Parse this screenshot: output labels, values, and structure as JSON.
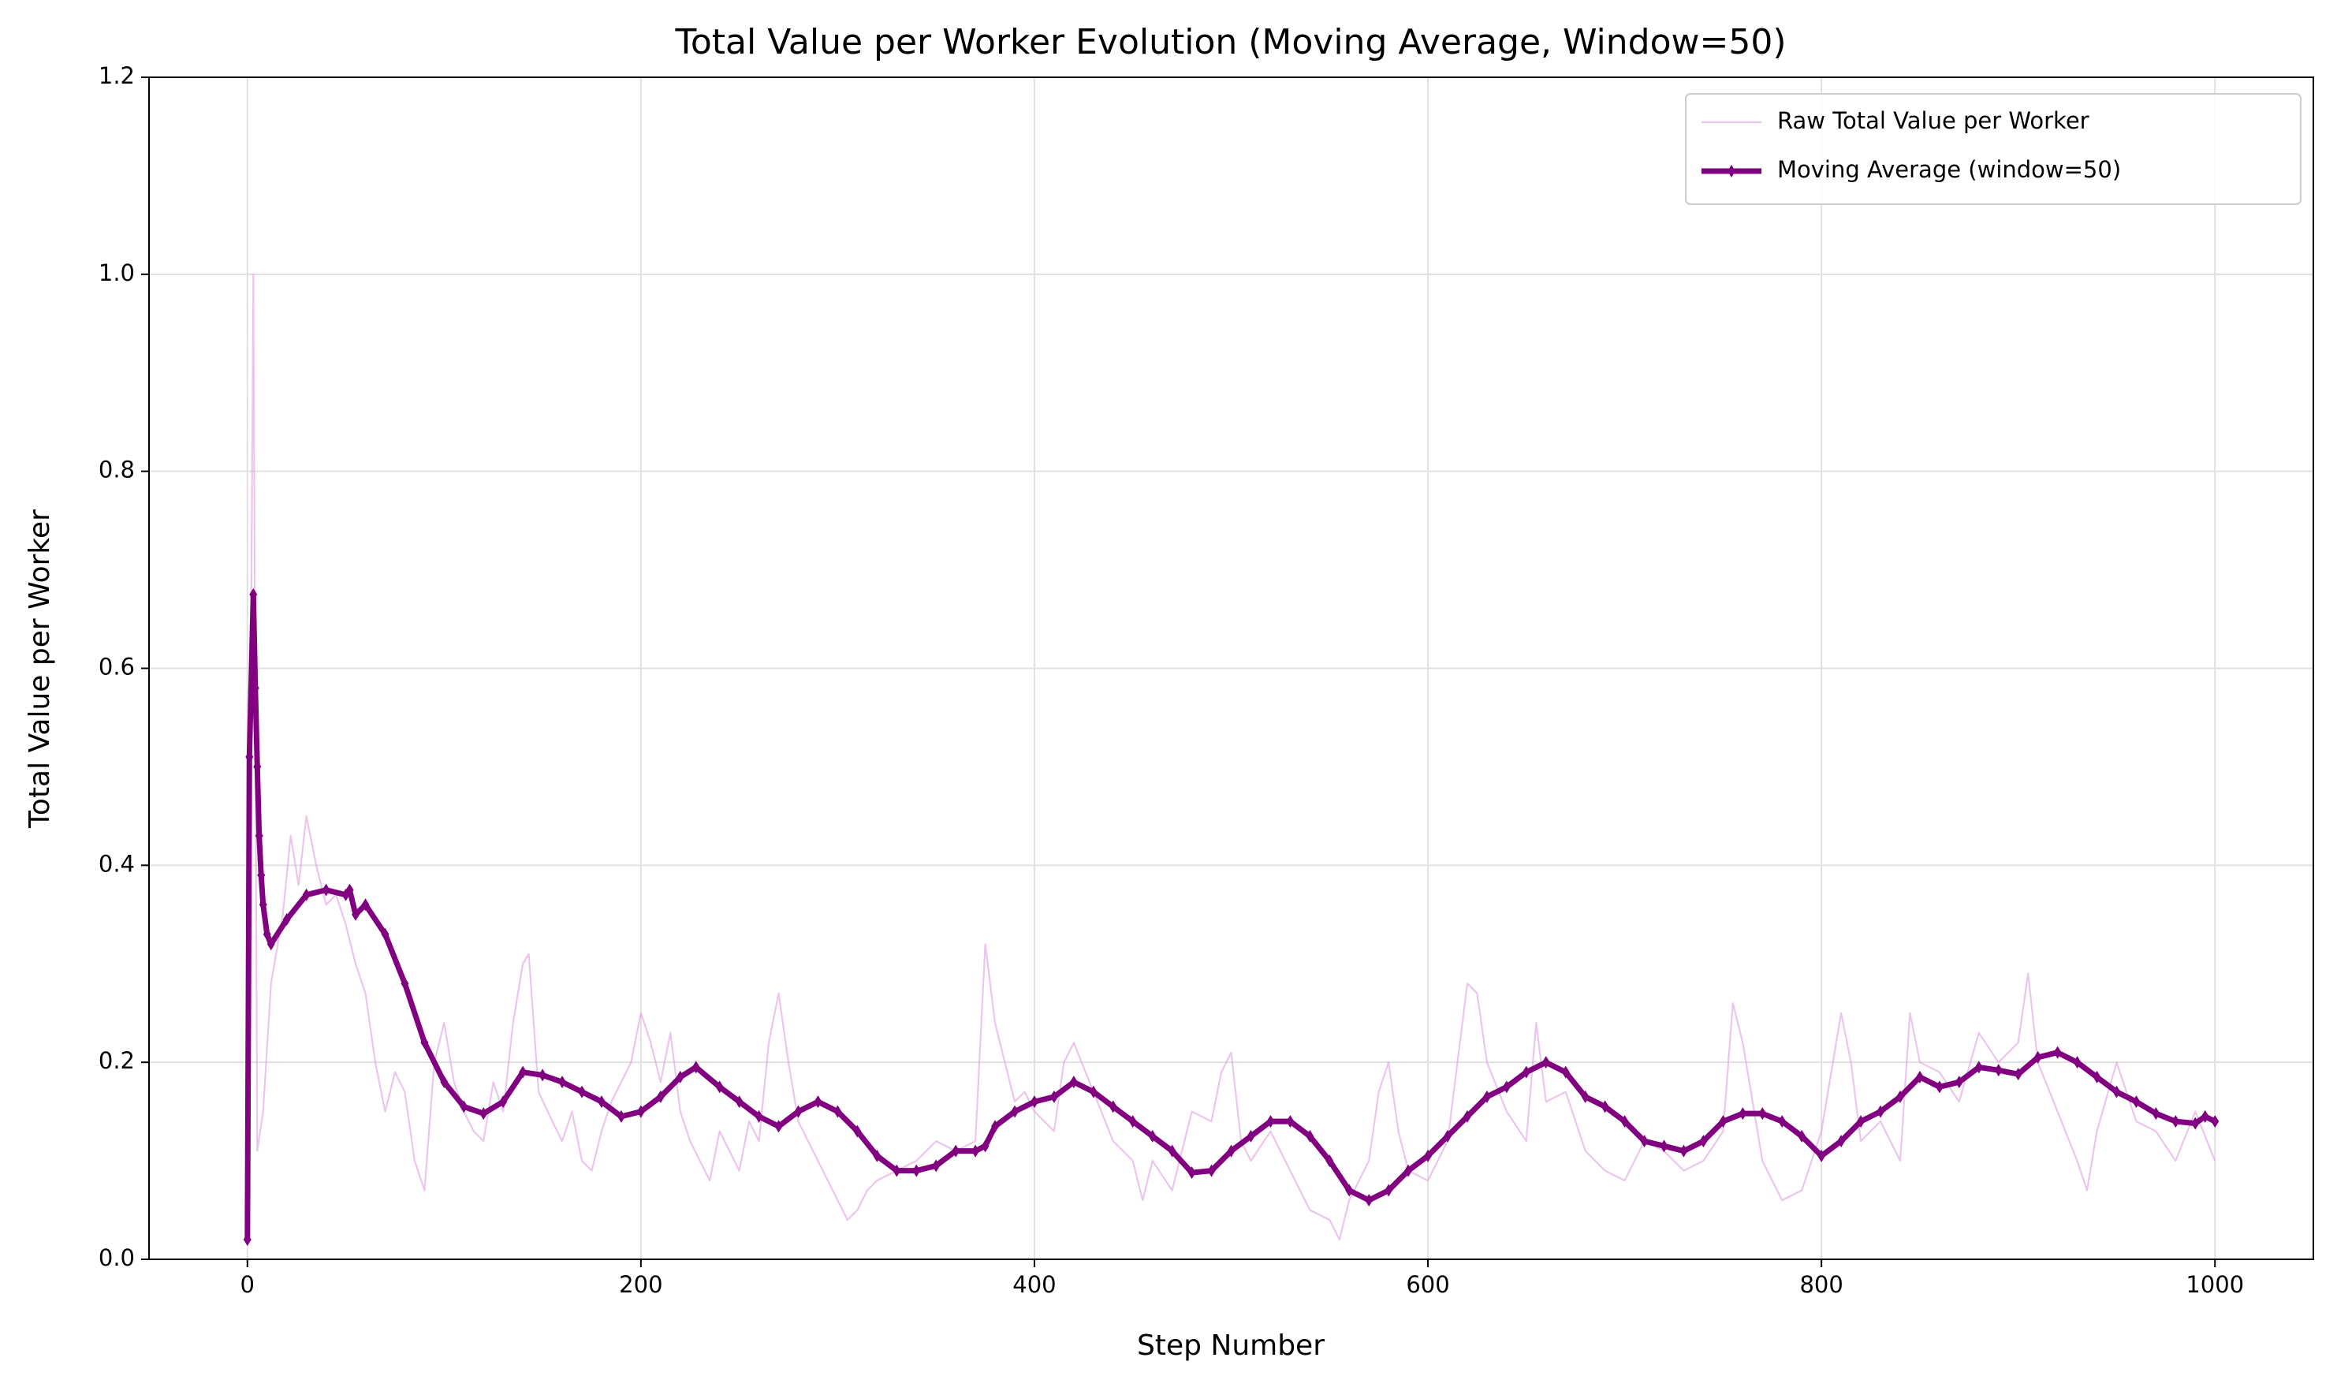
{
  "chart_data": {
    "type": "line",
    "title": "Total Value per Worker Evolution (Moving Average, Window=50)",
    "x_label": "Step Number",
    "y_label": "Total Value per Worker",
    "xlim": [
      -50,
      1050
    ],
    "ylim": [
      0,
      1.2
    ],
    "xticks": [
      0,
      200,
      400,
      600,
      800,
      1000
    ],
    "yticks": [
      {
        "value": 0,
        "label": "0.0"
      },
      0.2,
      0.4,
      0.6,
      0.8,
      {
        "value": 1,
        "label": "1.0"
      },
      1.2
    ],
    "grid": true,
    "legend": "upper right",
    "series": [
      {
        "name": "Raw Total Value per Worker",
        "color": "#dda0dd",
        "x": [
          0,
          2,
          3,
          5,
          8,
          12,
          18,
          22,
          26,
          30,
          35,
          40,
          45,
          50,
          55,
          60,
          65,
          70,
          75,
          80,
          85,
          90,
          95,
          100,
          105,
          110,
          115,
          120,
          125,
          130,
          135,
          140,
          143,
          148,
          155,
          160,
          165,
          170,
          175,
          180,
          185,
          190,
          195,
          200,
          205,
          210,
          215,
          220,
          225,
          230,
          235,
          240,
          245,
          250,
          255,
          260,
          265,
          270,
          275,
          280,
          285,
          290,
          295,
          300,
          305,
          310,
          315,
          320,
          330,
          340,
          350,
          360,
          370,
          375,
          380,
          385,
          390,
          395,
          400,
          410,
          415,
          420,
          430,
          440,
          450,
          455,
          460,
          470,
          480,
          490,
          495,
          500,
          505,
          510,
          520,
          530,
          540,
          550,
          555,
          560,
          570,
          575,
          580,
          585,
          590,
          600,
          610,
          620,
          625,
          630,
          640,
          650,
          655,
          660,
          670,
          680,
          690,
          700,
          710,
          720,
          730,
          740,
          750,
          755,
          760,
          770,
          780,
          790,
          800,
          810,
          815,
          820,
          830,
          840,
          845,
          850,
          860,
          870,
          880,
          890,
          900,
          905,
          910,
          920,
          930,
          935,
          940,
          950,
          960,
          970,
          980,
          990,
          1000
        ],
        "values": [
          0.02,
          0.68,
          1.0,
          0.11,
          0.15,
          0.28,
          0.35,
          0.43,
          0.38,
          0.45,
          0.4,
          0.36,
          0.37,
          0.34,
          0.3,
          0.27,
          0.2,
          0.15,
          0.19,
          0.17,
          0.1,
          0.07,
          0.2,
          0.24,
          0.18,
          0.15,
          0.13,
          0.12,
          0.18,
          0.15,
          0.24,
          0.3,
          0.31,
          0.17,
          0.14,
          0.12,
          0.15,
          0.1,
          0.09,
          0.13,
          0.16,
          0.18,
          0.2,
          0.25,
          0.22,
          0.18,
          0.23,
          0.15,
          0.12,
          0.1,
          0.08,
          0.13,
          0.11,
          0.09,
          0.14,
          0.12,
          0.22,
          0.27,
          0.2,
          0.14,
          0.12,
          0.1,
          0.08,
          0.06,
          0.04,
          0.05,
          0.07,
          0.08,
          0.09,
          0.1,
          0.12,
          0.11,
          0.12,
          0.32,
          0.24,
          0.2,
          0.16,
          0.17,
          0.15,
          0.13,
          0.2,
          0.22,
          0.17,
          0.12,
          0.1,
          0.06,
          0.1,
          0.07,
          0.15,
          0.14,
          0.19,
          0.21,
          0.12,
          0.1,
          0.13,
          0.09,
          0.05,
          0.04,
          0.02,
          0.06,
          0.1,
          0.17,
          0.2,
          0.13,
          0.09,
          0.08,
          0.12,
          0.28,
          0.27,
          0.2,
          0.15,
          0.12,
          0.24,
          0.16,
          0.17,
          0.11,
          0.09,
          0.08,
          0.12,
          0.11,
          0.09,
          0.1,
          0.13,
          0.26,
          0.22,
          0.1,
          0.06,
          0.07,
          0.13,
          0.25,
          0.2,
          0.12,
          0.14,
          0.1,
          0.25,
          0.2,
          0.19,
          0.16,
          0.23,
          0.2,
          0.22,
          0.29,
          0.2,
          0.15,
          0.1,
          0.07,
          0.13,
          0.2,
          0.14,
          0.13,
          0.1,
          0.15,
          0.1
        ]
      },
      {
        "name": "Moving Average (window=50)",
        "color": "#800080",
        "x": [
          0,
          1,
          3,
          4,
          5,
          6,
          7,
          8,
          10,
          12,
          20,
          30,
          40,
          50,
          52,
          55,
          60,
          70,
          80,
          90,
          100,
          110,
          120,
          130,
          140,
          150,
          160,
          170,
          180,
          190,
          200,
          210,
          220,
          228,
          240,
          250,
          260,
          270,
          280,
          290,
          300,
          310,
          320,
          330,
          340,
          350,
          360,
          370,
          375,
          380,
          390,
          400,
          410,
          420,
          430,
          440,
          450,
          460,
          470,
          480,
          490,
          500,
          510,
          520,
          530,
          540,
          550,
          560,
          570,
          580,
          590,
          600,
          610,
          620,
          630,
          640,
          650,
          660,
          670,
          680,
          690,
          700,
          710,
          720,
          730,
          740,
          750,
          760,
          770,
          780,
          790,
          800,
          810,
          820,
          830,
          840,
          850,
          860,
          870,
          880,
          890,
          900,
          910,
          920,
          930,
          940,
          950,
          960,
          970,
          980,
          990,
          995,
          1000
        ],
        "values": [
          0.02,
          0.51,
          0.675,
          0.58,
          0.5,
          0.43,
          0.39,
          0.36,
          0.33,
          0.32,
          0.345,
          0.37,
          0.375,
          0.37,
          0.375,
          0.35,
          0.36,
          0.33,
          0.28,
          0.22,
          0.18,
          0.155,
          0.148,
          0.16,
          0.19,
          0.187,
          0.18,
          0.17,
          0.16,
          0.145,
          0.15,
          0.165,
          0.185,
          0.195,
          0.175,
          0.16,
          0.145,
          0.135,
          0.15,
          0.16,
          0.15,
          0.13,
          0.105,
          0.09,
          0.09,
          0.095,
          0.11,
          0.11,
          0.115,
          0.135,
          0.15,
          0.16,
          0.165,
          0.18,
          0.17,
          0.155,
          0.14,
          0.125,
          0.11,
          0.088,
          0.09,
          0.11,
          0.125,
          0.14,
          0.14,
          0.125,
          0.1,
          0.07,
          0.06,
          0.07,
          0.09,
          0.105,
          0.125,
          0.145,
          0.165,
          0.175,
          0.19,
          0.2,
          0.19,
          0.165,
          0.155,
          0.14,
          0.12,
          0.115,
          0.11,
          0.12,
          0.14,
          0.148,
          0.148,
          0.14,
          0.125,
          0.105,
          0.12,
          0.14,
          0.15,
          0.165,
          0.185,
          0.175,
          0.18,
          0.195,
          0.192,
          0.188,
          0.205,
          0.21,
          0.2,
          0.185,
          0.17,
          0.16,
          0.148,
          0.14,
          0.138,
          0.145,
          0.14
        ]
      }
    ]
  }
}
